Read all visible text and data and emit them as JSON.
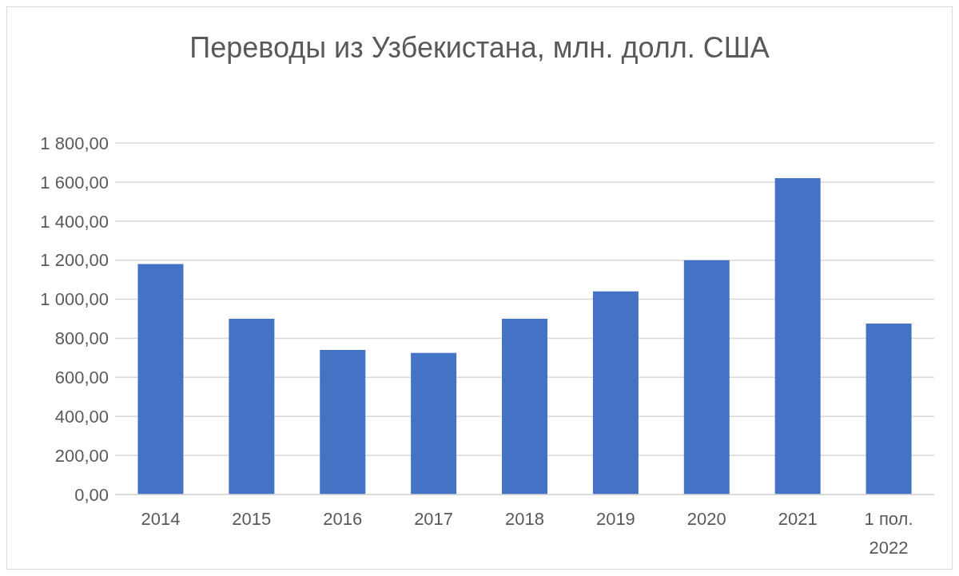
{
  "chart_data": {
    "type": "bar",
    "title": "Переводы из Узбекистана, млн. долл. США",
    "categories": [
      "2014",
      "2015",
      "2016",
      "2017",
      "2018",
      "2019",
      "2020",
      "2021",
      "1 пол. 2022"
    ],
    "values": [
      1180,
      900,
      740,
      725,
      900,
      1040,
      1200,
      1620,
      875
    ],
    "color": "#4472c4",
    "ylim": [
      0,
      1800
    ],
    "yticks": [
      {
        "value": 0,
        "label": "0,00"
      },
      {
        "value": 200,
        "label": "200,00"
      },
      {
        "value": 400,
        "label": "400,00"
      },
      {
        "value": 600,
        "label": "600,00"
      },
      {
        "value": 800,
        "label": "800,00"
      },
      {
        "value": 1000,
        "label": "1 000,00"
      },
      {
        "value": 1200,
        "label": "1 200,00"
      },
      {
        "value": 1400,
        "label": "1 400,00"
      },
      {
        "value": 1600,
        "label": "1 600,00"
      },
      {
        "value": 1800,
        "label": "1 800,00"
      }
    ],
    "grid": "y"
  }
}
